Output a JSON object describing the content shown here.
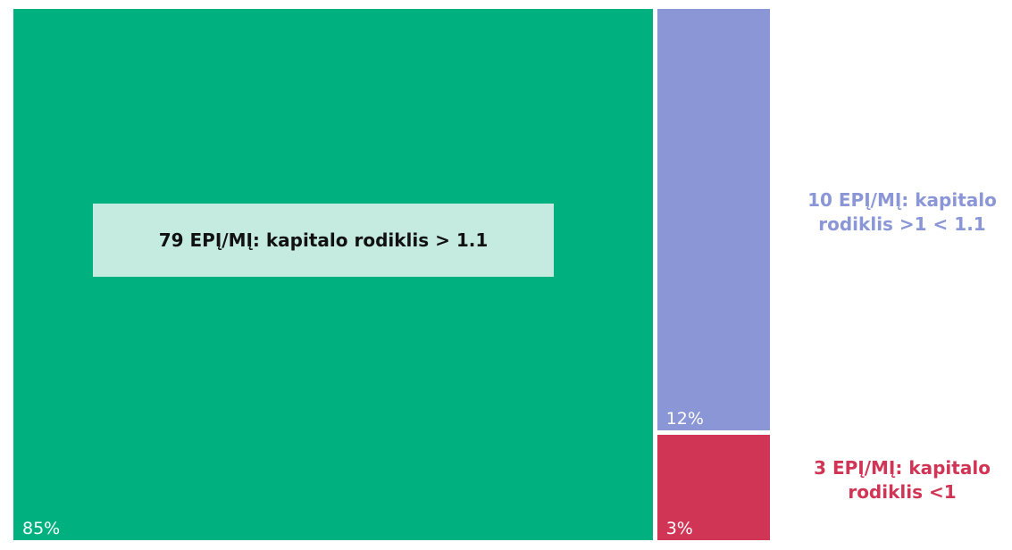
{
  "chart_data": {
    "type": "treemap",
    "categories": [
      "79 EPĮ/MĮ: kapitalo rodiklis > 1.1",
      "10 EPĮ/MĮ: kapitalo rodiklis >1 < 1.1",
      "3 EPĮ/MĮ: kapitalo rodiklis <1"
    ],
    "values": [
      85,
      12,
      3
    ],
    "value_labels": [
      "85%",
      "12%",
      "3%"
    ],
    "colors": [
      "#00b07f",
      "#8a96d6",
      "#d03556"
    ]
  }
}
